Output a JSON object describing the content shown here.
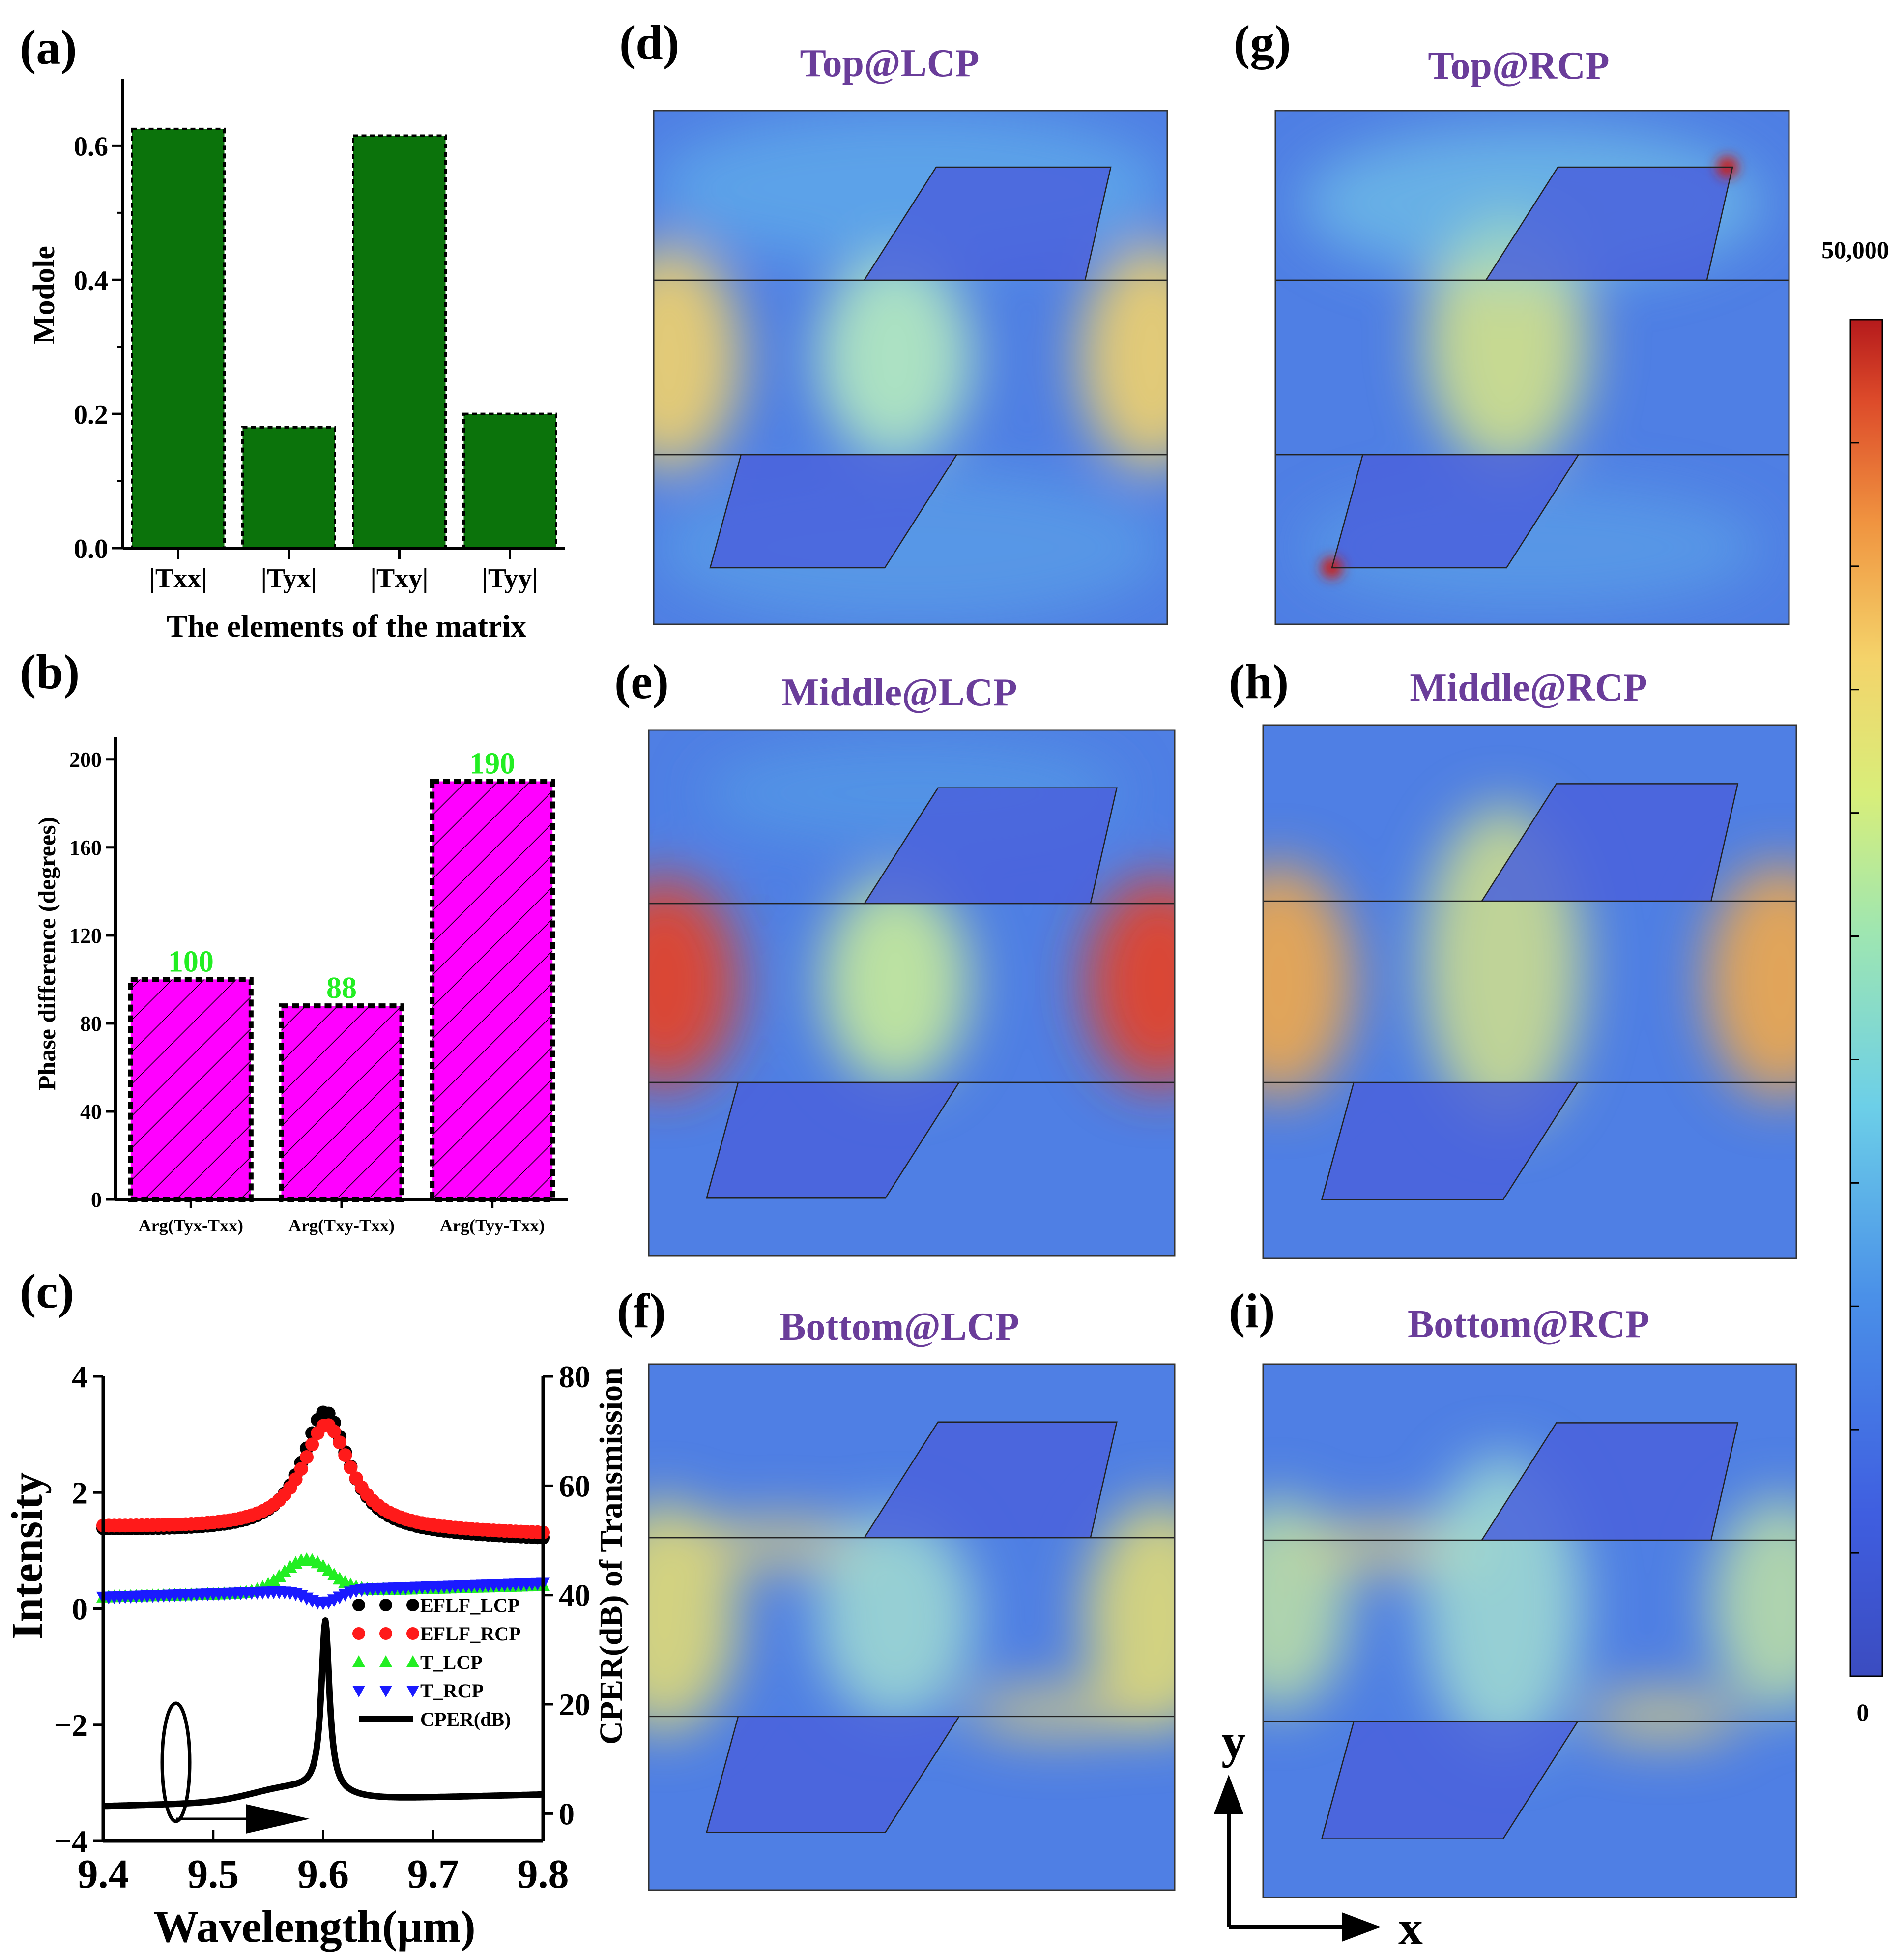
{
  "panel_labels": [
    "(a)",
    "(b)",
    "(c)",
    "(d)",
    "(e)",
    "(f)",
    "(g)",
    "(h)",
    "(i)"
  ],
  "colors": {
    "bar_green": "#0b730b",
    "bar_magenta": "#ff00ff",
    "annot_green": "#22ee22",
    "title_purple": "#6a3d9a",
    "ser_black": "#000000",
    "ser_red": "#ff1a1a",
    "ser_green": "#22ee22",
    "ser_blue": "#1a1aff"
  },
  "chart_data": [
    {
      "id": "a",
      "type": "bar",
      "categories": [
        "|Txx|",
        "|Tyx|",
        "|Txy|",
        "|Tyy|"
      ],
      "values": [
        0.625,
        0.18,
        0.615,
        0.2
      ],
      "ylabel": "Modole",
      "xlabel": "The elements of the matrix",
      "ylim": [
        0,
        0.7
      ],
      "yticks": [
        0.0,
        0.2,
        0.4,
        0.6
      ],
      "ytick_labels": [
        "0.0",
        "0.2",
        "0.4",
        "0.6"
      ]
    },
    {
      "id": "b",
      "type": "bar",
      "categories": [
        "Arg(Tyx-Txx)",
        "Arg(Txy-Txx)",
        "Arg(Tyy-Txx)"
      ],
      "values": [
        100,
        88,
        190
      ],
      "data_labels": [
        "100",
        "88",
        "190"
      ],
      "ylabel": "Phase difference (degrees)",
      "ylim": [
        0,
        210
      ],
      "yticks": [
        0,
        40,
        80,
        120,
        160,
        200
      ],
      "ytick_labels": [
        "0",
        "40",
        "80",
        "120",
        "160",
        "200"
      ]
    },
    {
      "id": "c",
      "type": "line",
      "xlabel": "Wavelength(μm)",
      "ylabel_left": "Intensity",
      "ylabel_right": "CPER(dB) of Transmission",
      "xlim": [
        9.4,
        9.8
      ],
      "ylim_left": [
        -4,
        4
      ],
      "ylim_right": [
        -5,
        80
      ],
      "xticks": [
        9.4,
        9.5,
        9.6,
        9.7,
        9.8
      ],
      "xtick_labels": [
        "9.4",
        "9.5",
        "9.6",
        "9.7",
        "9.8"
      ],
      "yticks_left": [
        -4,
        -2,
        0,
        2,
        4
      ],
      "ytick_labels_left": [
        "−4",
        "−2",
        "0",
        "2",
        "4"
      ],
      "yticks_right": [
        0,
        20,
        40,
        60,
        80
      ],
      "ytick_labels_right": [
        "0",
        "20",
        "40",
        "60",
        "80"
      ],
      "series": [
        {
          "name": "EFLF_LCP",
          "kind": "lorentz",
          "base": 1.35,
          "amp": 2.12,
          "center": 9.602,
          "width": 0.026,
          "slope": -0.4,
          "marker": "circle"
        },
        {
          "name": "EFLF_RCP",
          "kind": "lorentz",
          "base": 1.4,
          "amp": 1.83,
          "center": 9.603,
          "width": 0.027,
          "slope": -0.3,
          "marker": "circle"
        },
        {
          "name": "T_LCP",
          "kind": "bump",
          "base": 0.2,
          "amp": 0.55,
          "center": 9.585,
          "width": 0.03,
          "slope": 0.5,
          "marker": "triangle-up"
        },
        {
          "name": "T_RCP",
          "kind": "dip",
          "base": 0.2,
          "amp": -0.22,
          "center": 9.6,
          "width": 0.02,
          "slope": 0.6,
          "marker": "triangle-down"
        },
        {
          "name": "CPER(dB)",
          "kind": "cper",
          "base": -3.4,
          "amp": 2.95,
          "center": 9.602,
          "width": 0.0045,
          "axis": "right",
          "marker": "line"
        }
      ]
    }
  ],
  "field_maps": [
    {
      "id": "d",
      "title": "Top@LCP"
    },
    {
      "id": "e",
      "title": "Middle@LCP"
    },
    {
      "id": "f",
      "title": "Bottom@LCP"
    },
    {
      "id": "g",
      "title": "Top@RCP"
    },
    {
      "id": "h",
      "title": "Middle@RCP"
    },
    {
      "id": "i",
      "title": "Bottom@RCP"
    }
  ],
  "colorbar": {
    "max_label": "50,000",
    "min_label": "0",
    "min": 0,
    "max": 50000
  },
  "axes_glyph": {
    "y_label": "y",
    "x_label": "x"
  }
}
